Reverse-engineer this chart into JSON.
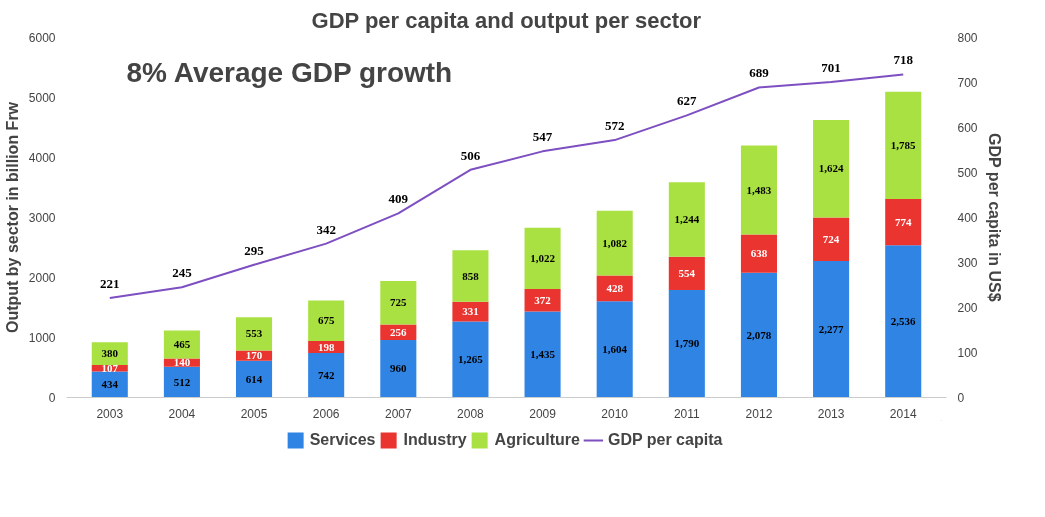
{
  "chart_data": {
    "type": "bar",
    "title": "GDP per capita and output per sector",
    "ylabel": "Output by sector in billion Frw",
    "y2label": "GDP per capita in US$",
    "annotations": [
      "8% Average GDP growth"
    ],
    "categories": [
      "2003",
      "2004",
      "2005",
      "2006",
      "2007",
      "2008",
      "2009",
      "2010",
      "2011",
      "2012",
      "2013",
      "2014"
    ],
    "stacked": true,
    "ylim": [
      0,
      6000
    ],
    "yticks": [
      0,
      1000,
      2000,
      3000,
      4000,
      5000,
      6000
    ],
    "y2lim": [
      0,
      800
    ],
    "y2ticks": [
      0,
      100,
      200,
      300,
      400,
      500,
      600,
      700,
      800
    ],
    "grid": false,
    "legend": "bottom",
    "series": [
      {
        "name": "Services",
        "color": "#2f84e4",
        "values": [
          434,
          512,
          614,
          742,
          960,
          1265,
          1435,
          1604,
          1790,
          2078,
          2277,
          2536
        ],
        "value_labels": [
          "434",
          "512",
          "614",
          "742",
          "960",
          "1,265",
          "1,435",
          "1,604",
          "1,790",
          "2,078",
          "2,277",
          "2,536"
        ]
      },
      {
        "name": "Industry",
        "color": "#ea3430",
        "values": [
          107,
          140,
          170,
          198,
          256,
          331,
          372,
          428,
          554,
          638,
          724,
          774
        ],
        "value_labels": [
          "107",
          "140",
          "170",
          "198",
          "256",
          "331",
          "372",
          "428",
          "554",
          "638",
          "724",
          "774"
        ]
      },
      {
        "name": "Agriculture",
        "color": "#a9e142",
        "values": [
          380,
          465,
          553,
          675,
          725,
          858,
          1022,
          1082,
          1244,
          1483,
          1624,
          1785
        ],
        "value_labels": [
          "380",
          "465",
          "553",
          "675",
          "725",
          "858",
          "1,022",
          "1,082",
          "1,244",
          "1,483",
          "1,624",
          "1,785"
        ]
      },
      {
        "name": "GDP per capita",
        "type": "line",
        "axis": "y2",
        "color": "#7d4fc1",
        "values": [
          221,
          245,
          295,
          342,
          409,
          506,
          547,
          572,
          627,
          689,
          701,
          718
        ],
        "value_labels": [
          "221",
          "245",
          "295",
          "342",
          "409",
          "506",
          "547",
          "572",
          "627",
          "689",
          "701",
          "718"
        ]
      }
    ]
  }
}
